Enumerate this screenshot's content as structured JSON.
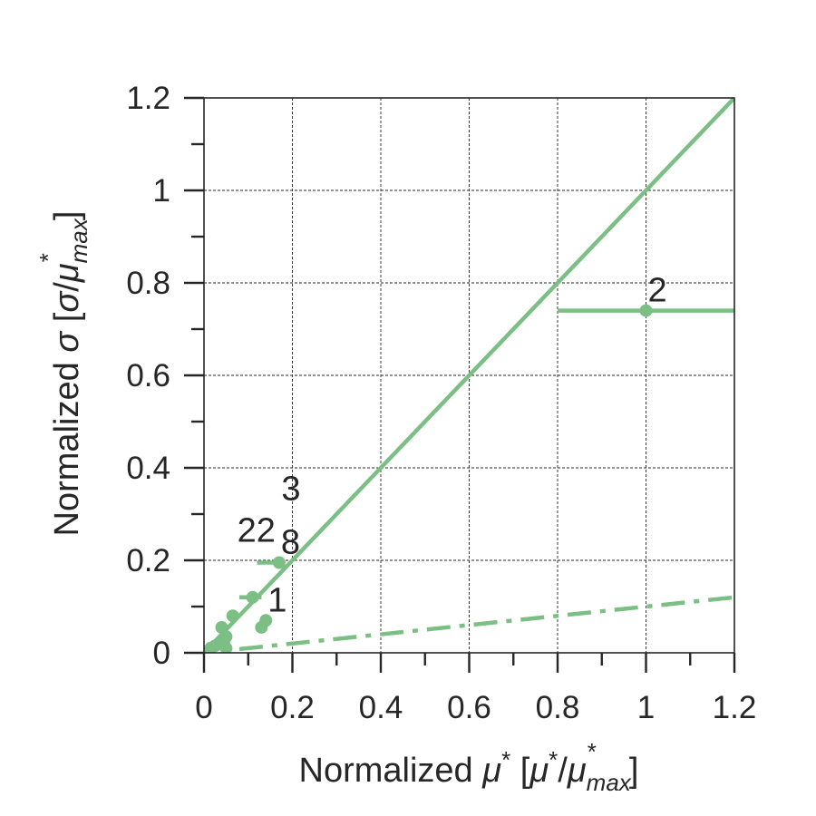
{
  "chart_data": {
    "type": "scatter",
    "xlabel": {
      "prefix": "Normalized ",
      "sym": "μ",
      "sup": "*",
      "mid": " [",
      "sym2": "μ",
      "sup2": "*",
      "slash": "/",
      "sym3": "μ",
      "sub": "max",
      "sup3": "*",
      "end": "]"
    },
    "ylabel": {
      "prefix": "Normalized ",
      "sym": "σ",
      "mid": " [",
      "sym2": "σ",
      "slash": "/",
      "sym3": "μ",
      "sub": "max",
      "sup": "*",
      "end": "]"
    },
    "xlim": [
      0,
      1.2
    ],
    "ylim": [
      0,
      1.2
    ],
    "xticks": [
      "0",
      "0.2",
      "0.4",
      "0.6",
      "0.8",
      "1",
      "1.2"
    ],
    "yticks": [
      "0",
      "0.2",
      "0.4",
      "0.6",
      "0.8",
      "1",
      "1.2"
    ],
    "grid": true,
    "color": "#7bbf84",
    "points": [
      {
        "x": 1.0,
        "y": 0.74,
        "xerr_lo": 0.2,
        "xerr_hi": 0.2,
        "label": "2"
      },
      {
        "x": 0.17,
        "y": 0.195,
        "xerr_lo": 0.05,
        "xerr_hi": 0.0,
        "label": "8"
      },
      {
        "x": 0.11,
        "y": 0.12,
        "xerr_lo": 0.03,
        "xerr_hi": 0.02,
        "label": ""
      },
      {
        "x": 0.14,
        "y": 0.07,
        "xerr_lo": 0.01,
        "xerr_hi": 0.01,
        "label": "1"
      },
      {
        "x": 0.13,
        "y": 0.055,
        "xerr_lo": 0.0,
        "xerr_hi": 0.0,
        "label": ""
      },
      {
        "x": 0.065,
        "y": 0.08,
        "xerr_lo": 0.0,
        "xerr_hi": 0.0,
        "label": ""
      },
      {
        "x": 0.04,
        "y": 0.055,
        "xerr_lo": 0.0,
        "xerr_hi": 0.0,
        "label": ""
      },
      {
        "x": 0.05,
        "y": 0.035,
        "xerr_lo": 0.0,
        "xerr_hi": 0.0,
        "label": ""
      },
      {
        "x": 0.045,
        "y": 0.025,
        "xerr_lo": 0.0,
        "xerr_hi": 0.0,
        "label": ""
      },
      {
        "x": 0.035,
        "y": 0.02,
        "xerr_lo": 0.0,
        "xerr_hi": 0.0,
        "label": ""
      },
      {
        "x": 0.025,
        "y": 0.015,
        "xerr_lo": 0.0,
        "xerr_hi": 0.0,
        "label": ""
      },
      {
        "x": 0.015,
        "y": 0.01,
        "xerr_lo": 0.0,
        "xerr_hi": 0.0,
        "label": ""
      },
      {
        "x": 0.05,
        "y": 0.01,
        "xerr_lo": 0.0,
        "xerr_hi": 0.0,
        "label": ""
      }
    ],
    "annotations": [
      {
        "text": "3",
        "x": 0.175,
        "y": 0.33
      },
      {
        "text": "22",
        "x": 0.075,
        "y": 0.24
      }
    ],
    "lines": [
      {
        "style": "solid",
        "slope": 1.0,
        "x": [
          0.0,
          1.2
        ]
      },
      {
        "style": "dashdot",
        "slope": 0.1,
        "x": [
          0.08,
          1.2
        ]
      }
    ]
  }
}
